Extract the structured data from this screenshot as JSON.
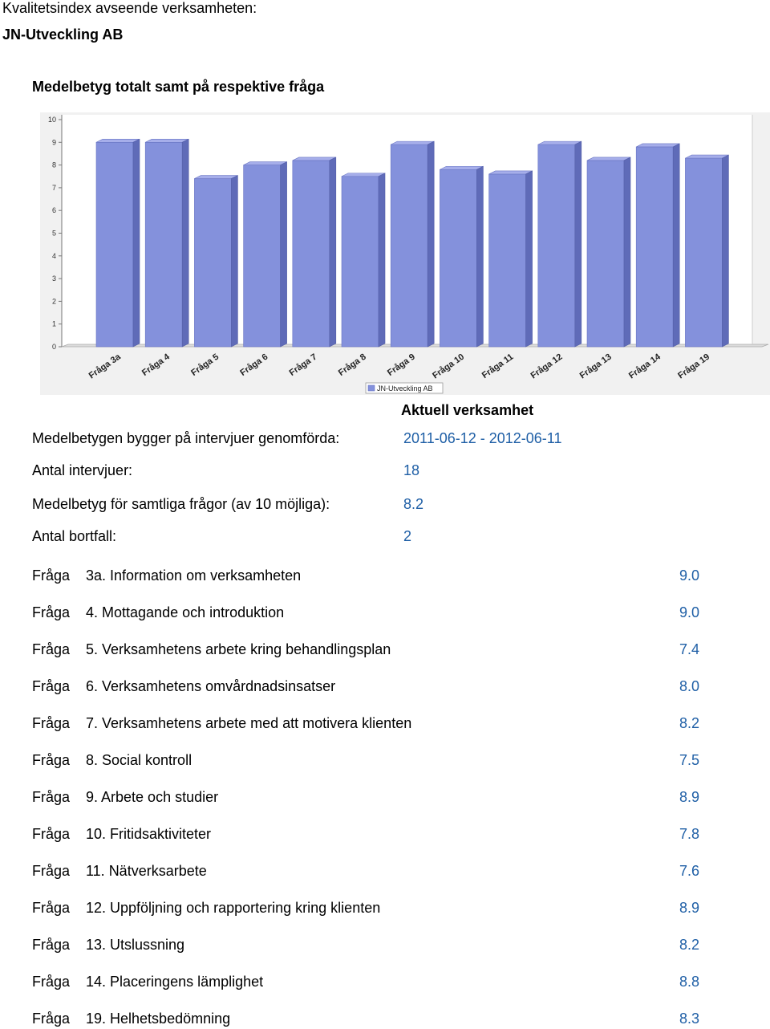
{
  "header": {
    "doc_title": "Kvalitetsindex avseende verksamheten:",
    "company": "JN-Utveckling AB",
    "chart_heading": "Medelbetyg totalt samt på respektive fråga"
  },
  "chart_data": {
    "type": "bar",
    "title": "",
    "xlabel": "",
    "ylabel": "",
    "ylim": [
      0,
      10
    ],
    "yticks": [
      0,
      1,
      2,
      3,
      4,
      5,
      6,
      7,
      8,
      9,
      10
    ],
    "grid": false,
    "legend_position": "bottom",
    "categories": [
      "Fråga 3a",
      "Fråga 4",
      "Fråga 5",
      "Fråga 6",
      "Fråga 7",
      "Fråga 8",
      "Fråga 9",
      "Fråga 10",
      "Fråga 11",
      "Fråga 12",
      "Fråga 13",
      "Fråga 14",
      "Fråga 19"
    ],
    "series": [
      {
        "name": "JN-Utveckling AB",
        "color": "#8491dc",
        "values": [
          9.0,
          9.0,
          7.4,
          8.0,
          8.2,
          7.5,
          8.9,
          7.8,
          7.6,
          8.9,
          8.2,
          8.8,
          8.3
        ]
      }
    ]
  },
  "summary": {
    "column_header": "Aktuell verksamhet",
    "rows": [
      {
        "label": "Medelbetygen bygger på intervjuer genomförda:",
        "value": "2011-06-12 - 2012-06-11"
      },
      {
        "label": "Antal intervjuer:",
        "value": "18"
      },
      {
        "label": "Medelbetyg för samtliga frågor (av 10 möjliga):",
        "value": "8.2"
      },
      {
        "label": "Antal bortfall:",
        "value": "2"
      }
    ]
  },
  "questions": [
    {
      "prefix": "Fråga",
      "text": "3a. Information om verksamheten",
      "score": "9.0"
    },
    {
      "prefix": "Fråga",
      "text": "4. Mottagande och introduktion",
      "score": "9.0"
    },
    {
      "prefix": "Fråga",
      "text": "5. Verksamhetens arbete kring behandlingsplan",
      "score": "7.4"
    },
    {
      "prefix": "Fråga",
      "text": "6. Verksamhetens omvårdnadsinsatser",
      "score": "8.0"
    },
    {
      "prefix": "Fråga",
      "text": "7. Verksamhetens arbete med att motivera klienten",
      "score": "8.2"
    },
    {
      "prefix": "Fråga",
      "text": "8. Social kontroll",
      "score": "7.5"
    },
    {
      "prefix": "Fråga",
      "text": "9. Arbete och studier",
      "score": "8.9"
    },
    {
      "prefix": "Fråga",
      "text": "10. Fritidsaktiviteter",
      "score": "7.8"
    },
    {
      "prefix": "Fråga",
      "text": "11. Nätverksarbete",
      "score": "7.6"
    },
    {
      "prefix": "Fråga",
      "text": "12. Uppföljning och rapportering kring klienten",
      "score": "8.9"
    },
    {
      "prefix": "Fråga",
      "text": "13. Utslussning",
      "score": "8.2"
    },
    {
      "prefix": "Fråga",
      "text": "14. Placeringens lämplighet",
      "score": "8.8"
    },
    {
      "prefix": "Fråga",
      "text": "19. Helhetsbedömning",
      "score": "8.3"
    }
  ]
}
